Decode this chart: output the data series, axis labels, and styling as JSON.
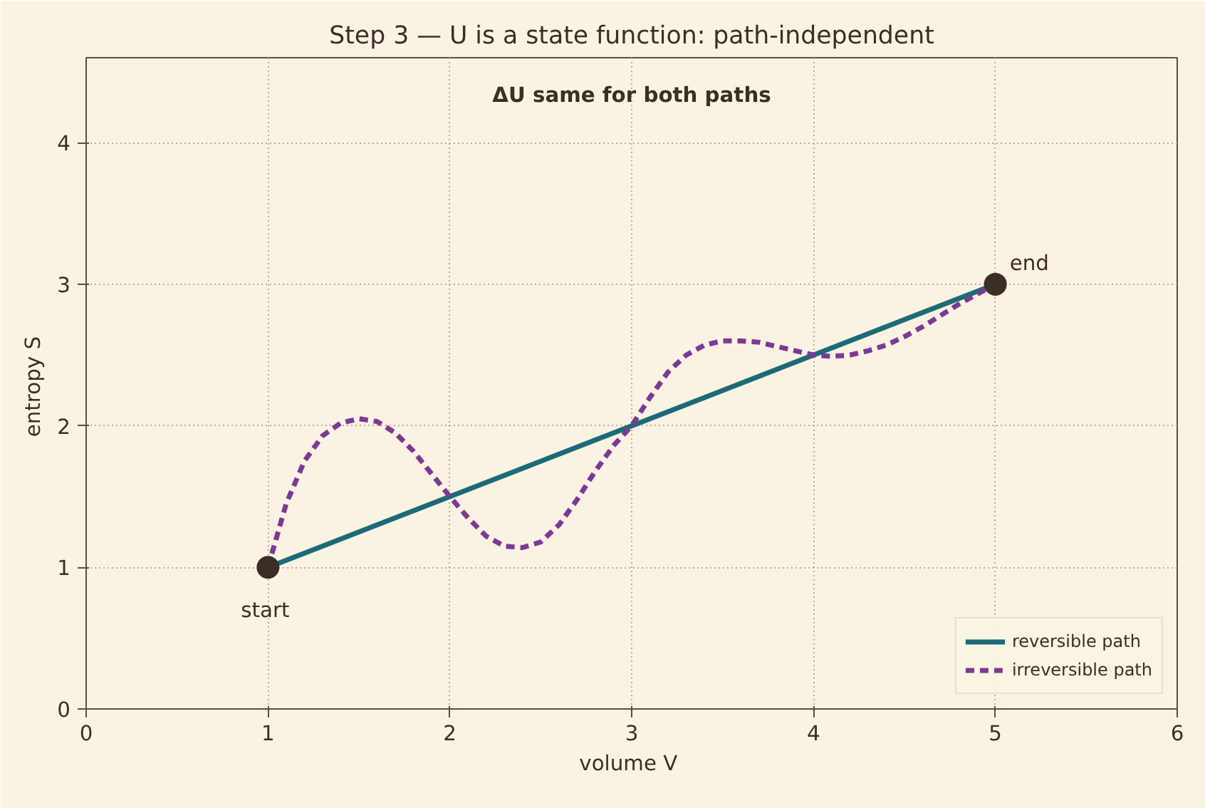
{
  "chart_data": {
    "type": "line",
    "title": "Step 3 — U is a state function: path-independent",
    "xlabel": "volume  V",
    "ylabel": "entropy  S",
    "xlim": [
      0,
      6
    ],
    "ylim": [
      0,
      4.6
    ],
    "xticks": [
      0,
      1,
      2,
      3,
      4,
      5,
      6
    ],
    "yticks": [
      0,
      1,
      2,
      3,
      4
    ],
    "grid": true,
    "legend": "bottom right",
    "series": [
      {
        "name": "reversible path",
        "color": "#1a6b78",
        "line_style": "solid",
        "x": [
          1,
          5
        ],
        "values": [
          1,
          3
        ]
      },
      {
        "name": "irreversible path",
        "color": "#7b3a96",
        "line_style": "dashed",
        "x": [
          1.0,
          1.1,
          1.2,
          1.3,
          1.4,
          1.5,
          1.6,
          1.7,
          1.8,
          1.9,
          2.0,
          2.1,
          2.2,
          2.3,
          2.4,
          2.5,
          2.6,
          2.7,
          2.8,
          2.9,
          3.0,
          3.1,
          3.2,
          3.3,
          3.4,
          3.5,
          3.6,
          3.7,
          3.8,
          3.9,
          4.0,
          4.1,
          4.2,
          4.3,
          4.4,
          4.5,
          4.6,
          4.7,
          4.8,
          4.9,
          5.0
        ],
        "values": [
          1.0,
          1.45,
          1.75,
          1.93,
          2.02,
          2.05,
          2.03,
          1.95,
          1.82,
          1.66,
          1.5,
          1.35,
          1.22,
          1.15,
          1.14,
          1.18,
          1.3,
          1.48,
          1.68,
          1.86,
          2.0,
          2.2,
          2.38,
          2.5,
          2.57,
          2.6,
          2.6,
          2.59,
          2.56,
          2.53,
          2.5,
          2.49,
          2.5,
          2.53,
          2.57,
          2.63,
          2.7,
          2.78,
          2.86,
          2.93,
          3.0
        ]
      },
      {
        "type": "scatter",
        "color": "#3a2e26",
        "marker": "circle",
        "x": [
          1,
          5
        ],
        "values": [
          1,
          3
        ]
      }
    ],
    "annotations": [
      "ΔU same for both paths",
      {
        "text": "start",
        "x": 1,
        "y": 1
      },
      {
        "text": "end",
        "x": 5,
        "y": 3
      }
    ]
  }
}
